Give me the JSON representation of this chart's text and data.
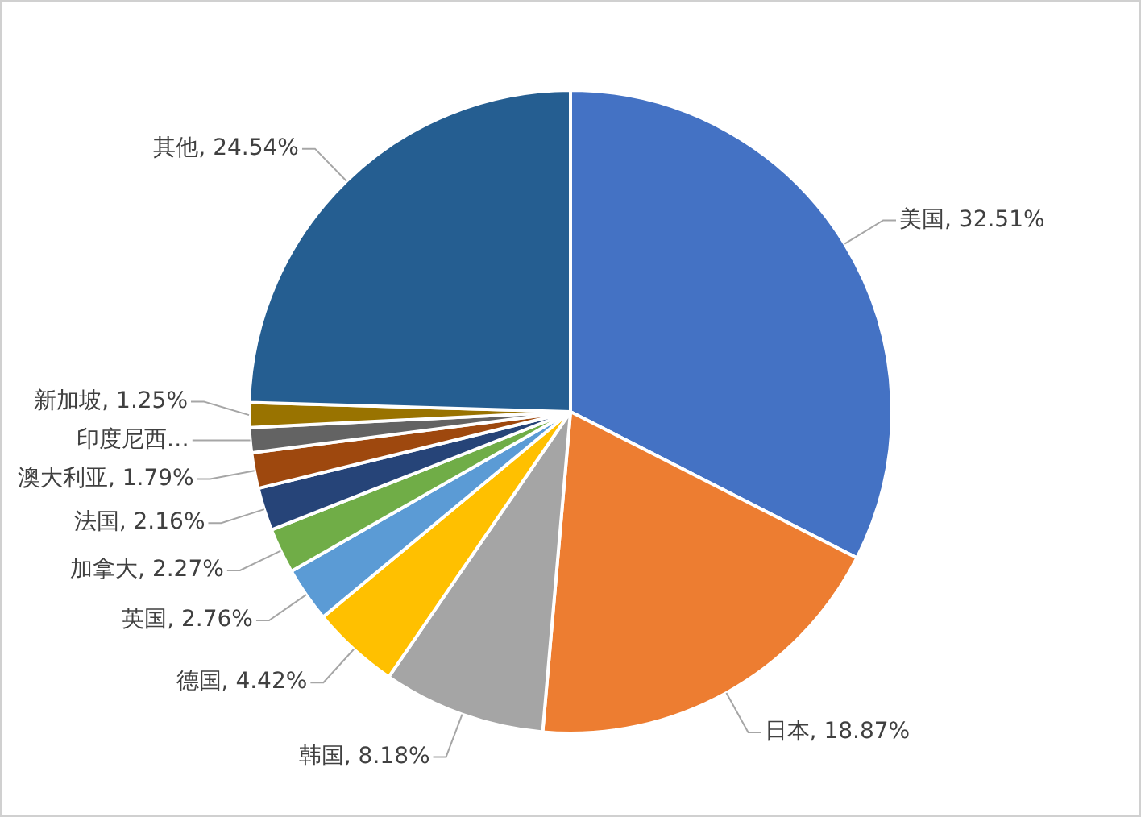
{
  "chart_data": {
    "type": "pie",
    "categories": [
      "美国",
      "日本",
      "韩国",
      "德国",
      "英国",
      "加拿大",
      "法国",
      "澳大利亚",
      "印度尼西…",
      "新加坡",
      "其他"
    ],
    "values": [
      32.51,
      18.87,
      8.18,
      4.42,
      2.76,
      2.27,
      2.16,
      1.79,
      1.25,
      1.25,
      24.54
    ],
    "value_labels": [
      "32.51%",
      "18.87%",
      "8.18%",
      "4.42%",
      "2.76%",
      "2.27%",
      "2.16%",
      "1.79%",
      null,
      "1.25%",
      "24.54%"
    ],
    "colors": [
      "#4472c4",
      "#ed7d31",
      "#a5a5a5",
      "#ffc000",
      "#5b9bd5",
      "#70ad47",
      "#264478",
      "#9e480e",
      "#636363",
      "#997300",
      "#255e91"
    ],
    "legend": false
  }
}
